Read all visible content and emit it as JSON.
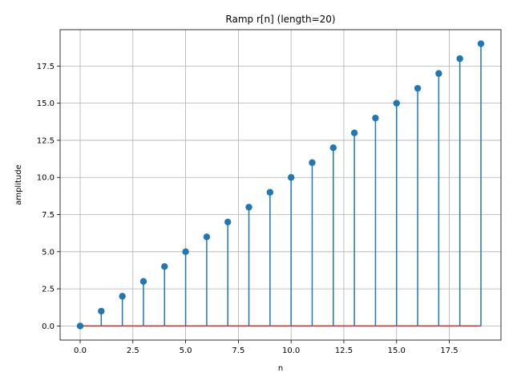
{
  "chart_data": {
    "type": "stem",
    "title": "Ramp r[n] (length=20)",
    "xlabel": "n",
    "ylabel": "amplitude",
    "x": [
      0,
      1,
      2,
      3,
      4,
      5,
      6,
      7,
      8,
      9,
      10,
      11,
      12,
      13,
      14,
      15,
      16,
      17,
      18,
      19
    ],
    "values": [
      0,
      1,
      2,
      3,
      4,
      5,
      6,
      7,
      8,
      9,
      10,
      11,
      12,
      13,
      14,
      15,
      16,
      17,
      18,
      19
    ],
    "baseline": 0,
    "xlim": [
      -0.95,
      19.95
    ],
    "ylim": [
      -0.95,
      19.95
    ],
    "xticks": [
      "0.0",
      "2.5",
      "5.0",
      "7.5",
      "10.0",
      "12.5",
      "15.0",
      "17.5"
    ],
    "yticks": [
      "0.0",
      "2.5",
      "5.0",
      "7.5",
      "10.0",
      "12.5",
      "15.0",
      "17.5"
    ],
    "grid": true,
    "colors": {
      "stem": "#1f77b4",
      "baseline": "#d62728",
      "grid": "#b0b0b0"
    }
  }
}
